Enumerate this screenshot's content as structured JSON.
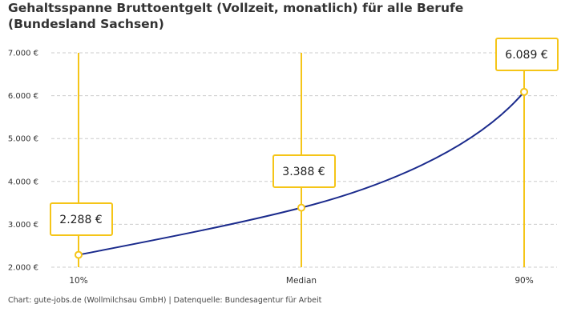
{
  "chart_data": {
    "type": "line",
    "title": "Gehaltsspanne Bruttoentgelt (Vollzeit, monatlich) für alle Berufe (Bundesland Sachsen)",
    "categories": [
      "10%",
      "Median",
      "90%"
    ],
    "values": [
      2288,
      3388,
      6089
    ],
    "data_labels": [
      "2.288 €",
      "3.388 €",
      "6.089 €"
    ],
    "ylim": [
      2000,
      7000
    ],
    "yticks": [
      2000,
      3000,
      4000,
      5000,
      6000,
      7000
    ],
    "ytick_labels": [
      "2.000 €",
      "3.000 €",
      "4.000 €",
      "5.000 €",
      "6.000 €",
      "7.000 €"
    ],
    "grid": true,
    "colors": {
      "line": "#1a2a8c",
      "marker": "#f5c518",
      "grid": "#cccccc"
    }
  },
  "source": "Chart: gute-jobs.de (Wollmilchsau GmbH) | Datenquelle: Bundesagentur für Arbeit"
}
